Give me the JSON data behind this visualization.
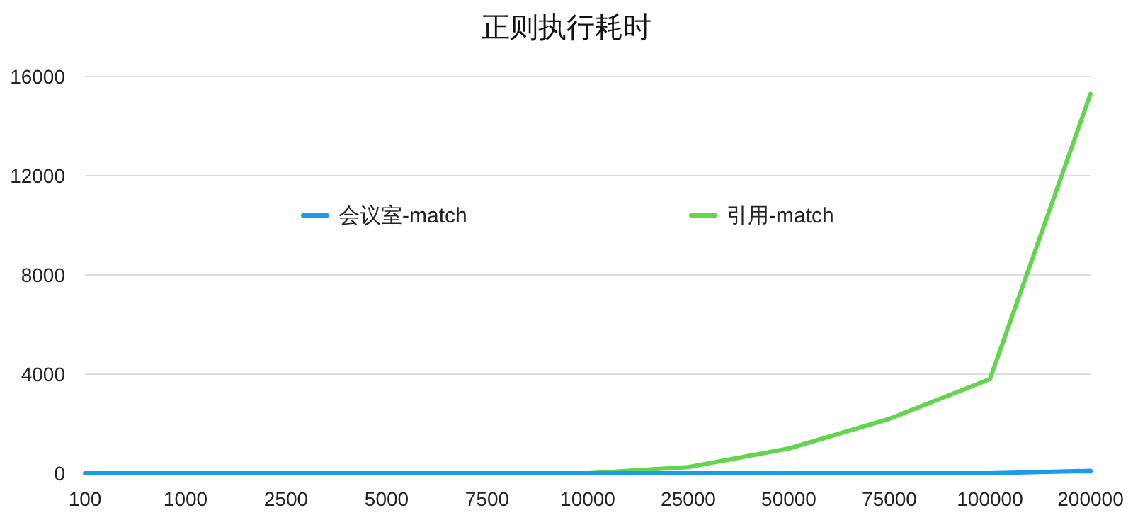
{
  "chart_data": {
    "type": "line",
    "title": "正则执行耗时",
    "categories": [
      "100",
      "1000",
      "2500",
      "5000",
      "7500",
      "10000",
      "25000",
      "50000",
      "75000",
      "100000",
      "200000"
    ],
    "series": [
      {
        "name": "会议室-match",
        "color": "#1a9bf0",
        "values": [
          0,
          0,
          0,
          0,
          0,
          0,
          0,
          0,
          0,
          0,
          100
        ]
      },
      {
        "name": "引用-match",
        "color": "#62d64a",
        "values": [
          null,
          null,
          null,
          null,
          null,
          0,
          250,
          1000,
          2200,
          3800,
          15300
        ]
      }
    ],
    "ylim": [
      0,
      16000
    ],
    "yticks": [
      0,
      4000,
      8000,
      12000,
      16000
    ],
    "grid": "y",
    "legend": "top",
    "marker": "none",
    "line_style": "solid"
  }
}
